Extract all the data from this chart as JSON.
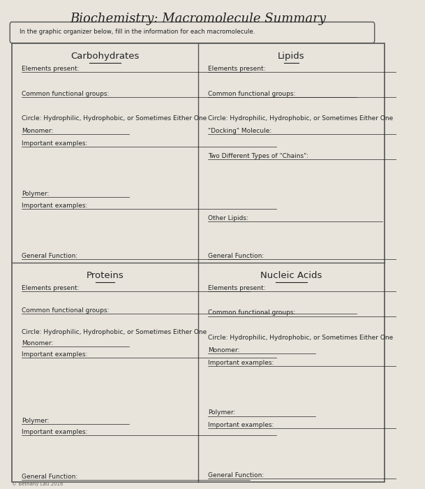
{
  "title": "Biochemistry: Macromolecule Summary",
  "subtitle": "In the graphic organizer below, fill in the information for each macromolecule.",
  "bg_color": "#e8e4dc",
  "border_color": "#555555",
  "text_color": "#222222",
  "quadrants": [
    {
      "name": "Carbohydrates",
      "lines": [
        "Elements present:",
        "",
        "Common functional groups:",
        "",
        "Circle: Hydrophilic, Hydrophobic, or Sometimes Either One",
        "Monomer:",
        "Important examples:",
        "",
        "",
        "",
        "Polymer:",
        "Important examples:",
        "",
        "",
        "",
        "General Function:"
      ]
    },
    {
      "name": "Lipids",
      "lines": [
        "Elements present:",
        "",
        "Common functional groups:",
        "",
        "Circle: Hydrophilic, Hydrophobic, or Sometimes Either One",
        "\"Docking\" Molecule:",
        "",
        "Two Different Types of \"Chains\":",
        "",
        "",
        "",
        "",
        "Other Lipids:",
        "",
        "",
        "General Function:"
      ]
    },
    {
      "name": "Proteins",
      "lines": [
        "Elements present:",
        "",
        "Common functional groups:",
        "",
        "Circle: Hydrophilic, Hydrophobic, or Sometimes Either One",
        "Monomer:",
        "Important examples:",
        "",
        "",
        "",
        "",
        "",
        "Polymer:",
        "Important examples:",
        "",
        "",
        "",
        "General Function:"
      ]
    },
    {
      "name": "Nucleic Acids",
      "lines": [
        "Elements present:",
        "",
        "Common functional groups:",
        "",
        "Circle: Hydrophilic, Hydrophobic, or Sometimes Either One",
        "Monomer:",
        "Important examples:",
        "",
        "",
        "",
        "Polymer:",
        "Important examples:",
        "",
        "",
        "",
        "General Function:"
      ]
    }
  ]
}
